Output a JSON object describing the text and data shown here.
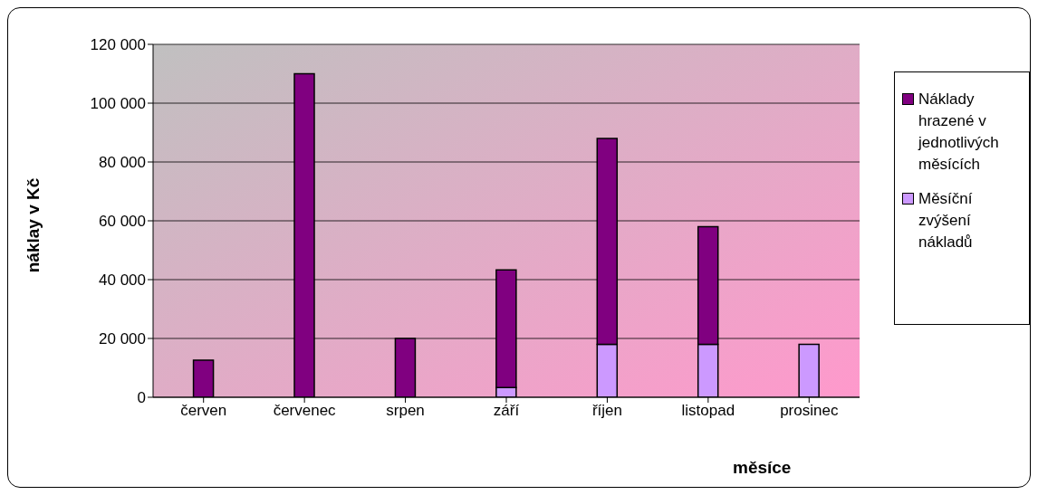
{
  "chart_data": {
    "type": "bar",
    "stacked": true,
    "xlabel": "měsíce",
    "ylabel": "náklay v Kč",
    "categories": [
      "červen",
      "červenec",
      "srpen",
      "září",
      "říjen",
      "listopad",
      "prosinec"
    ],
    "series": [
      {
        "name": "Měsíční zvýšení nákladů",
        "color": "#cc99ff",
        "values": [
          null,
          null,
          null,
          3300,
          18000,
          18000,
          18000
        ]
      },
      {
        "name": "Náklady hrazené v jednotlivých měsících",
        "color": "#800080",
        "values": [
          12600,
          110000,
          20000,
          40000,
          70000,
          40000,
          null
        ]
      }
    ],
    "ylim": [
      0,
      120000
    ],
    "yticks": [
      0,
      {
        "value": 20000,
        "label": "20 000"
      },
      {
        "value": 40000,
        "label": "40 000"
      },
      {
        "value": 60000,
        "label": "60 000"
      },
      {
        "value": 80000,
        "label": "80 000"
      },
      {
        "value": 100000,
        "label": "100 000"
      },
      {
        "value": 120000,
        "label": "120 000"
      }
    ],
    "grid": "y",
    "legend": "right"
  }
}
